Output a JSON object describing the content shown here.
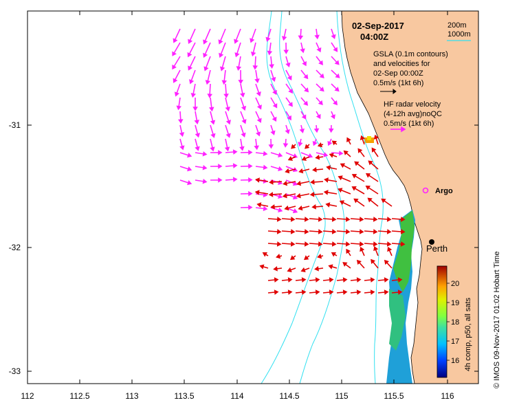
{
  "map": {
    "title_date": "02-Sep-2017",
    "title_time": "04:00Z",
    "lon_ticks": [
      "112",
      "112.5",
      "113",
      "113.5",
      "114",
      "114.5",
      "115",
      "115.5",
      "116"
    ],
    "lat_ticks": [
      "-31",
      "-32",
      "-33"
    ],
    "legend": {
      "contour_200": "200m",
      "contour_1000": "1000m",
      "gsla_line1": "GSLA (0.1m contours)",
      "gsla_line2": "and velocities for",
      "gsla_line3": "02-Sep 00:00Z",
      "gsla_scale": "0.5m/s (1kt 6h)",
      "hf_line1": "HF radar velocity",
      "hf_line2": "(4-12h avg)noQC",
      "hf_scale": "0.5m/s (1kt 6h)"
    },
    "places": {
      "argo": "Argo",
      "perth": "Perth"
    },
    "colorbar": {
      "label": "4h comp, p50, all sats",
      "ticks": [
        "20",
        "19",
        "18",
        "17",
        "16"
      ]
    },
    "credit": "© IMOS 09-Nov-2017 01:02 Hobart Time",
    "colors": {
      "land": "#f8c8a0",
      "contour": "#30e0f0",
      "gsla_arrow": "#ff22ff",
      "hf_arrow": "#e00000"
    }
  }
}
